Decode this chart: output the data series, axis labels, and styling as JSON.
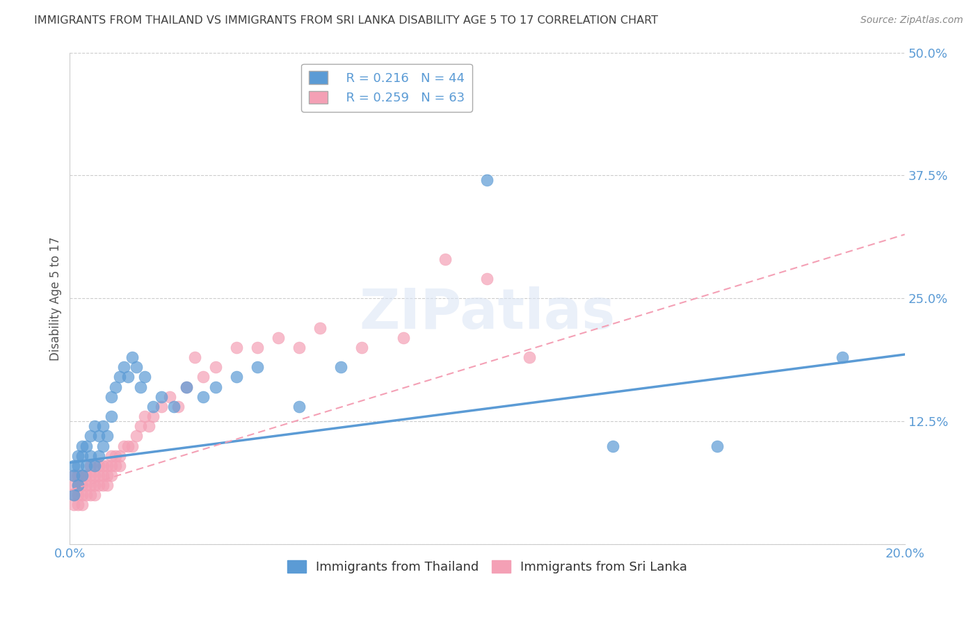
{
  "title": "IMMIGRANTS FROM THAILAND VS IMMIGRANTS FROM SRI LANKA DISABILITY AGE 5 TO 17 CORRELATION CHART",
  "source": "Source: ZipAtlas.com",
  "ylabel": "Disability Age 5 to 17",
  "xlabel": "",
  "xlim": [
    0.0,
    0.2
  ],
  "ylim": [
    0.0,
    0.5
  ],
  "xticks": [
    0.0,
    0.04,
    0.08,
    0.12,
    0.16,
    0.2
  ],
  "yticks": [
    0.0,
    0.125,
    0.25,
    0.375,
    0.5
  ],
  "thailand_color": "#5b9bd5",
  "srilanka_color": "#f4a0b5",
  "thailand_R": 0.216,
  "thailand_N": 44,
  "srilanka_R": 0.259,
  "srilanka_N": 63,
  "watermark_text": "ZIPatlas",
  "thailand_scatter_x": [
    0.001,
    0.001,
    0.001,
    0.002,
    0.002,
    0.002,
    0.003,
    0.003,
    0.003,
    0.004,
    0.004,
    0.005,
    0.005,
    0.006,
    0.006,
    0.007,
    0.007,
    0.008,
    0.008,
    0.009,
    0.01,
    0.01,
    0.011,
    0.012,
    0.013,
    0.014,
    0.015,
    0.016,
    0.017,
    0.018,
    0.02,
    0.022,
    0.025,
    0.028,
    0.032,
    0.035,
    0.04,
    0.045,
    0.055,
    0.065,
    0.1,
    0.13,
    0.155,
    0.185
  ],
  "thailand_scatter_y": [
    0.05,
    0.07,
    0.08,
    0.06,
    0.08,
    0.09,
    0.07,
    0.09,
    0.1,
    0.08,
    0.1,
    0.09,
    0.11,
    0.08,
    0.12,
    0.09,
    0.11,
    0.1,
    0.12,
    0.11,
    0.13,
    0.15,
    0.16,
    0.17,
    0.18,
    0.17,
    0.19,
    0.18,
    0.16,
    0.17,
    0.14,
    0.15,
    0.14,
    0.16,
    0.15,
    0.16,
    0.17,
    0.18,
    0.14,
    0.18,
    0.37,
    0.1,
    0.1,
    0.19
  ],
  "srilanka_scatter_x": [
    0.001,
    0.001,
    0.001,
    0.001,
    0.002,
    0.002,
    0.002,
    0.002,
    0.003,
    0.003,
    0.003,
    0.003,
    0.004,
    0.004,
    0.004,
    0.005,
    0.005,
    0.005,
    0.005,
    0.006,
    0.006,
    0.006,
    0.007,
    0.007,
    0.007,
    0.008,
    0.008,
    0.008,
    0.009,
    0.009,
    0.009,
    0.01,
    0.01,
    0.01,
    0.011,
    0.011,
    0.012,
    0.012,
    0.013,
    0.014,
    0.015,
    0.016,
    0.017,
    0.018,
    0.019,
    0.02,
    0.022,
    0.024,
    0.026,
    0.028,
    0.03,
    0.032,
    0.035,
    0.04,
    0.045,
    0.05,
    0.055,
    0.06,
    0.07,
    0.08,
    0.09,
    0.1,
    0.11
  ],
  "srilanka_scatter_y": [
    0.04,
    0.05,
    0.06,
    0.07,
    0.04,
    0.05,
    0.06,
    0.07,
    0.04,
    0.05,
    0.06,
    0.07,
    0.05,
    0.06,
    0.07,
    0.05,
    0.06,
    0.07,
    0.08,
    0.05,
    0.06,
    0.07,
    0.06,
    0.07,
    0.08,
    0.06,
    0.07,
    0.08,
    0.06,
    0.07,
    0.08,
    0.07,
    0.08,
    0.09,
    0.08,
    0.09,
    0.08,
    0.09,
    0.1,
    0.1,
    0.1,
    0.11,
    0.12,
    0.13,
    0.12,
    0.13,
    0.14,
    0.15,
    0.14,
    0.16,
    0.19,
    0.17,
    0.18,
    0.2,
    0.2,
    0.21,
    0.2,
    0.22,
    0.2,
    0.21,
    0.29,
    0.27,
    0.19
  ],
  "thailand_trendline_x": [
    0.0,
    0.2
  ],
  "thailand_trendline_y": [
    0.083,
    0.193
  ],
  "srilanka_trendline_x": [
    0.0,
    0.2
  ],
  "srilanka_trendline_y": [
    0.055,
    0.315
  ],
  "background_color": "#ffffff",
  "grid_color": "#cccccc",
  "title_color": "#404040",
  "axis_color": "#5b9bd5",
  "tick_label_color": "#5b9bd5"
}
